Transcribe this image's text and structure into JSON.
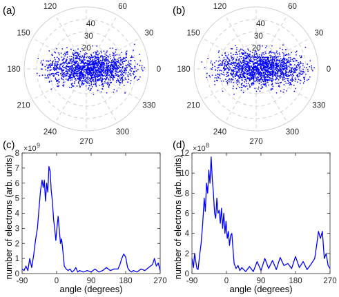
{
  "colors": {
    "series": "#0000ff",
    "axis": "#262626",
    "polar_grid": "#cfcfcf"
  },
  "chart_data": [
    {
      "panel": "(a)",
      "type": "scatter",
      "projection": "polar",
      "angle_ticks": [
        "0",
        "30",
        "60",
        "90",
        "120",
        "150",
        "180",
        "210",
        "240",
        "270",
        "300",
        "330"
      ],
      "radial_ticks": [
        "20",
        "30",
        "40"
      ],
      "rlim": [
        0,
        50
      ],
      "grid": true,
      "cloud": {
        "theta_center_deg": 355,
        "theta_spread_deg": 30,
        "r_center": 12,
        "r_spread": 6
      }
    },
    {
      "panel": "(b)",
      "type": "scatter",
      "projection": "polar",
      "angle_ticks": [
        "0",
        "30",
        "60",
        "90",
        "120",
        "150",
        "180",
        "210",
        "240",
        "270",
        "300",
        "330"
      ],
      "radial_ticks": [
        "20",
        "30",
        "40"
      ],
      "rlim": [
        0,
        50
      ],
      "grid": true,
      "cloud": {
        "theta_center_deg": 355,
        "theta_spread_deg": 30,
        "r_center": 12,
        "r_spread": 6
      }
    },
    {
      "panel": "(c)",
      "type": "line",
      "xlabel": "angle (degrees)",
      "ylabel": "number of electrons (arb. units)",
      "exponent": "×10",
      "exponent_power": "9",
      "xlim": [
        -90,
        270
      ],
      "ylim": [
        0,
        8
      ],
      "xticks": [
        -90,
        0,
        90,
        180,
        270
      ],
      "yticks": [
        0,
        1,
        2,
        3,
        4,
        5,
        6,
        7,
        8
      ],
      "x": [
        -90,
        -85,
        -80,
        -75,
        -70,
        -65,
        -60,
        -55,
        -50,
        -45,
        -42,
        -38,
        -35,
        -32,
        -29,
        -26,
        -23,
        -20,
        -17,
        -14,
        -11,
        -8,
        -5,
        -2,
        1,
        4,
        7,
        10,
        13,
        16,
        20,
        25,
        30,
        35,
        40,
        45,
        50,
        55,
        60,
        70,
        80,
        90,
        100,
        110,
        120,
        130,
        140,
        150,
        160,
        165,
        170,
        175,
        180,
        185,
        190,
        195,
        200,
        210,
        220,
        230,
        240,
        250,
        255,
        260,
        265,
        270
      ],
      "y": [
        0.3,
        0.2,
        0.5,
        0.2,
        1.0,
        0.4,
        1.2,
        2.2,
        3.0,
        4.6,
        5.5,
        6.2,
        5.7,
        6.2,
        4.8,
        6.0,
        5.4,
        7.1,
        6.8,
        5.5,
        4.8,
        3.6,
        3.0,
        2.2,
        3.1,
        3.8,
        2.9,
        2.0,
        2.3,
        1.6,
        0.5,
        0.3,
        0.2,
        0.3,
        0.1,
        0.2,
        0.4,
        0.1,
        0.2,
        0.1,
        0.2,
        0.1,
        0.3,
        0.1,
        0.2,
        0.4,
        0.2,
        0.3,
        0.3,
        0.6,
        1.0,
        1.3,
        1.1,
        0.4,
        0.2,
        0.1,
        0.2,
        0.1,
        0.3,
        0.2,
        0.4,
        0.6,
        1.0,
        0.5,
        0.7,
        0.2
      ]
    },
    {
      "panel": "(d)",
      "type": "line",
      "xlabel": "angle (degrees)",
      "ylabel": "number of electrons (arb. units)",
      "exponent": "×10",
      "exponent_power": "8",
      "xlim": [
        -90,
        270
      ],
      "ylim": [
        0,
        12
      ],
      "xticks": [
        -90,
        0,
        90,
        180,
        270
      ],
      "yticks": [
        0,
        2,
        4,
        6,
        8,
        10,
        12
      ],
      "x": [
        -90,
        -86,
        -83,
        -80,
        -77,
        -74,
        -70,
        -66,
        -62,
        -58,
        -55,
        -52,
        -49,
        -46,
        -43,
        -40,
        -37,
        -34,
        -31,
        -28,
        -25,
        -22,
        -19,
        -16,
        -13,
        -10,
        -7,
        -4,
        -1,
        2,
        5,
        8,
        11,
        14,
        17,
        20,
        25,
        30,
        35,
        40,
        50,
        60,
        70,
        80,
        90,
        100,
        110,
        120,
        130,
        140,
        150,
        160,
        170,
        180,
        190,
        200,
        210,
        220,
        230,
        235,
        240,
        245,
        250,
        255,
        260,
        265,
        270
      ],
      "y": [
        1.5,
        0.6,
        2.0,
        1.2,
        0.5,
        0.4,
        1.8,
        3.0,
        5.0,
        7.5,
        6.2,
        9.0,
        8.0,
        10.3,
        9.0,
        11.6,
        9.5,
        8.0,
        6.0,
        5.5,
        7.5,
        6.0,
        6.3,
        5.0,
        6.5,
        4.5,
        6.0,
        4.0,
        5.2,
        3.5,
        4.2,
        2.8,
        3.8,
        4.0,
        2.5,
        1.0,
        0.5,
        0.8,
        0.3,
        0.6,
        0.2,
        0.7,
        0.2,
        1.2,
        0.3,
        1.5,
        0.5,
        1.3,
        0.4,
        1.6,
        0.8,
        1.0,
        0.5,
        1.7,
        0.6,
        1.2,
        0.4,
        0.9,
        1.5,
        2.8,
        4.2,
        3.5,
        4.2,
        1.5,
        2.0,
        0.8,
        0.5
      ]
    }
  ]
}
